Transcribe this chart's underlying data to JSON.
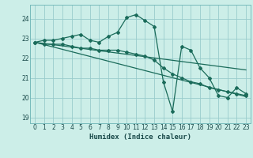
{
  "xlabel": "Humidex (Indice chaleur)",
  "background_color": "#cceee8",
  "grid_color": "#99cccc",
  "line_color": "#1a6b5a",
  "xlim": [
    -0.5,
    23.5
  ],
  "ylim": [
    18.7,
    24.7
  ],
  "xticks": [
    0,
    1,
    2,
    3,
    4,
    5,
    6,
    7,
    8,
    9,
    10,
    11,
    12,
    13,
    14,
    15,
    16,
    17,
    18,
    19,
    20,
    21,
    22,
    23
  ],
  "yticks": [
    19,
    20,
    21,
    22,
    23,
    24
  ],
  "curve1": {
    "x": [
      0,
      1,
      2,
      3,
      4,
      5,
      6,
      7,
      8,
      9,
      10,
      11,
      12,
      13,
      14,
      15,
      16,
      17,
      18,
      19,
      20,
      21,
      22,
      23
    ],
    "y": [
      22.8,
      22.9,
      22.9,
      23.0,
      23.1,
      23.2,
      22.9,
      22.8,
      23.1,
      23.3,
      24.05,
      24.2,
      23.9,
      23.6,
      20.8,
      19.3,
      22.6,
      22.4,
      21.5,
      21.0,
      20.1,
      20.0,
      20.5,
      20.2
    ]
  },
  "curve2": {
    "x": [
      0,
      1,
      2,
      3,
      4,
      5,
      6,
      7,
      8,
      9,
      10,
      11,
      12,
      13,
      14,
      15,
      16,
      17,
      18,
      19,
      20,
      21,
      22,
      23
    ],
    "y": [
      22.8,
      22.7,
      22.7,
      22.7,
      22.6,
      22.5,
      22.5,
      22.4,
      22.4,
      22.4,
      22.3,
      22.2,
      22.1,
      21.9,
      21.5,
      21.2,
      21.0,
      20.8,
      20.7,
      20.5,
      20.4,
      20.3,
      20.2,
      20.1
    ]
  },
  "trendline1": {
    "x": [
      0,
      23
    ],
    "y": [
      22.8,
      20.05
    ]
  },
  "trendline2": {
    "x": [
      0,
      23
    ],
    "y": [
      22.8,
      21.4
    ]
  }
}
